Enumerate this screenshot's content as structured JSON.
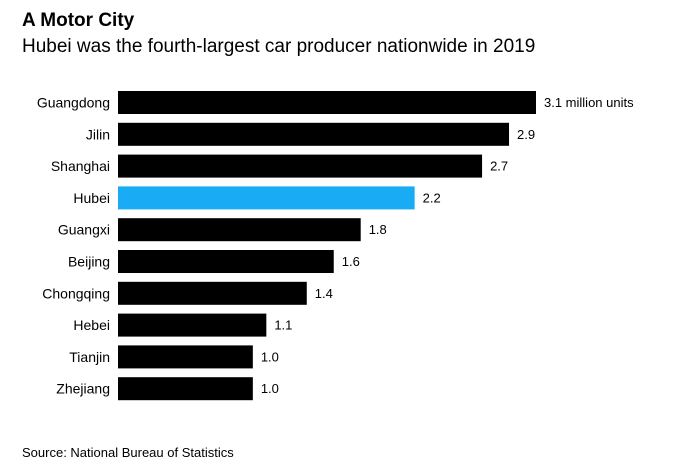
{
  "chart_data": {
    "type": "bar",
    "orientation": "horizontal",
    "title": "A Motor City",
    "subtitle": "Hubei was the fourth-largest car producer nationwide in 2019",
    "categories": [
      "Guangdong",
      "Jilin",
      "Shanghai",
      "Hubei",
      "Guangxi",
      "Beijing",
      "Chongqing",
      "Hebei",
      "Tianjin",
      "Zhejiang"
    ],
    "values": [
      3.1,
      2.9,
      2.7,
      2.2,
      1.8,
      1.6,
      1.4,
      1.1,
      1.0,
      1.0
    ],
    "data_labels": [
      "3.1 million units",
      "2.9",
      "2.7",
      "2.2",
      "1.8",
      "1.6",
      "1.4",
      "1.1",
      "1.0",
      "1.0"
    ],
    "highlight": "Hubei",
    "xlabel": "",
    "ylabel": "",
    "xlim": [
      0,
      3.1
    ],
    "grid": false,
    "legend": "none",
    "colors": {
      "default": "#000000",
      "highlight": "#1aabf5"
    },
    "source": "Source: National Bureau of Statistics"
  }
}
